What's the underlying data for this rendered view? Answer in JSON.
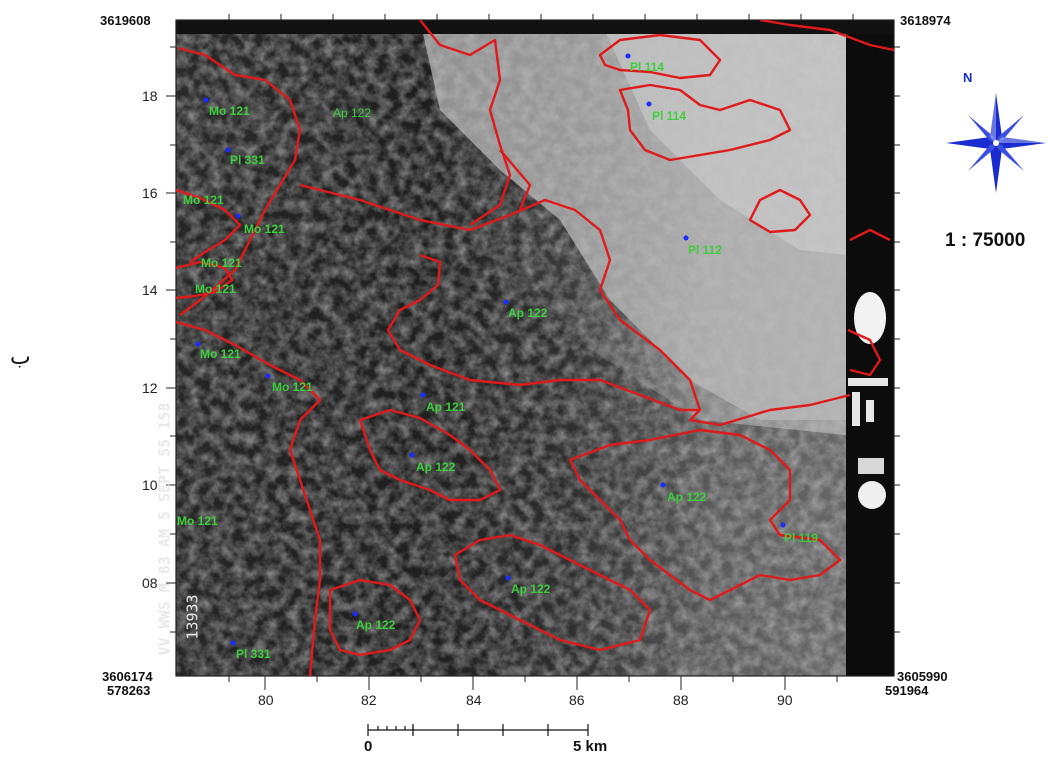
{
  "map": {
    "corners": {
      "top_left": "3619608",
      "top_right": "3618974",
      "bottom_left_y": "3606174",
      "bottom_left_x": "578263",
      "bottom_right_y": "3605990",
      "bottom_right_x": "591964"
    },
    "y_ticks": [
      "18",
      "16",
      "14",
      "12",
      "10",
      "08"
    ],
    "x_ticks": [
      "80",
      "82",
      "84",
      "86",
      "88",
      "90"
    ],
    "unit_labels": [
      "Mo 121",
      "Ap 122",
      "Pl 114",
      "Pl 114",
      "Pl 331",
      "Mo 121",
      "Mo 121",
      "Mo 121",
      "Mo 121",
      "Pl 112",
      "Ap 122",
      "Mo 121",
      "Mo 121",
      "Ap 121",
      "Ap 122",
      "Ap 122",
      "Mo 121",
      "Pl 119",
      "Ap 122",
      "Ap 122",
      "Pl 331"
    ],
    "film_annotation": "VV WWS M 83 AM 5 SEPT 55 158",
    "film_number": "13933",
    "boundary_color": "#e01a1a",
    "label_color": "#3ecf3e",
    "point_color": "#1a2cff"
  },
  "legend": {
    "north_label": "N",
    "scale_ratio": "1 : 75000",
    "scale_bar_start": "0",
    "scale_bar_end": "5 km",
    "north_arrow_color": "#1a2ccf"
  },
  "page": {
    "side_letter": "ب"
  }
}
